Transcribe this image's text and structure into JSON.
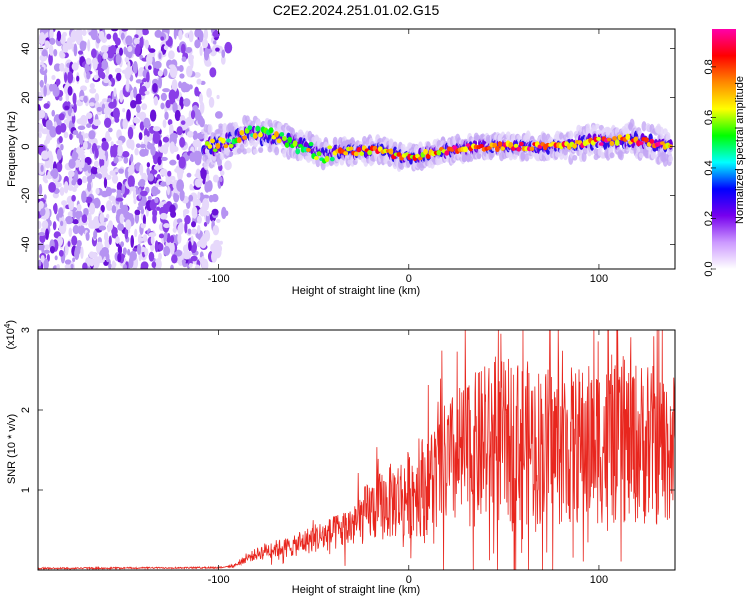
{
  "title": "C2E2.2024.251.01.02.G15",
  "chart_data": [
    {
      "type": "heatmap",
      "xlabel": "Height of straight line (km)",
      "ylabel": "Frequency (Hz)",
      "xlim": [
        -195,
        140
      ],
      "ylim": [
        -50,
        48
      ],
      "xticks": [
        -100,
        0,
        100
      ],
      "xtick_labels": [
        "-100",
        "0",
        "100"
      ],
      "yticks": [
        -40,
        -20,
        0,
        20,
        40
      ],
      "ytick_labels": [
        "-40",
        "-20",
        "0",
        "20",
        "40"
      ],
      "noise_region_x": [
        -195,
        -92
      ],
      "ridge_center_hz": [
        {
          "x": -105,
          "y": 0
        },
        {
          "x": -95,
          "y": 2
        },
        {
          "x": -85,
          "y": 5
        },
        {
          "x": -75,
          "y": 4
        },
        {
          "x": -65,
          "y": 3
        },
        {
          "x": -55,
          "y": 0
        },
        {
          "x": -45,
          "y": -3
        },
        {
          "x": -35,
          "y": -2
        },
        {
          "x": -25,
          "y": -2
        },
        {
          "x": -15,
          "y": -1
        },
        {
          "x": -5,
          "y": -4
        },
        {
          "x": 5,
          "y": -4
        },
        {
          "x": 15,
          "y": -2
        },
        {
          "x": 25,
          "y": -1
        },
        {
          "x": 35,
          "y": 0
        },
        {
          "x": 45,
          "y": 0
        },
        {
          "x": 55,
          "y": 0
        },
        {
          "x": 65,
          "y": 0
        },
        {
          "x": 75,
          "y": 0
        },
        {
          "x": 85,
          "y": 1
        },
        {
          "x": 95,
          "y": 2
        },
        {
          "x": 105,
          "y": 2
        },
        {
          "x": 115,
          "y": 3
        },
        {
          "x": 125,
          "y": 2
        },
        {
          "x": 135,
          "y": 0
        }
      ],
      "colorbar": {
        "label": "Normalized spectral amplitude",
        "range": [
          0.0,
          0.95
        ],
        "ticks": [
          0.0,
          0.2,
          0.4,
          0.6,
          0.8
        ],
        "tick_labels": [
          "0.0",
          "0.2",
          "0.4",
          "0.6",
          "0.8"
        ],
        "colors": [
          "#ffffff",
          "#cc99ff",
          "#7700ee",
          "#0000ff",
          "#00ffff",
          "#00ff00",
          "#ffff00",
          "#ff8800",
          "#ff0000",
          "#ff00aa"
        ]
      }
    },
    {
      "type": "line",
      "xlabel": "Height of straight line (km)",
      "ylabel": "SNR (10 * v/v)",
      "exponent_label": "(x10",
      "exponent_sup": "4",
      "exponent_close": ")",
      "xlim": [
        -195,
        140
      ],
      "ylim": [
        0,
        3
      ],
      "xticks": [
        -100,
        0,
        100
      ],
      "xtick_labels": [
        "-100",
        "0",
        "100"
      ],
      "yticks": [
        1,
        2,
        3
      ],
      "ytick_labels": [
        "1",
        "2",
        "3"
      ],
      "color": "#e8261e",
      "envelope": [
        {
          "x": -195,
          "y": 0.02
        },
        {
          "x": -100,
          "y": 0.03
        },
        {
          "x": -92,
          "y": 0.05
        },
        {
          "x": -85,
          "y": 0.15
        },
        {
          "x": -75,
          "y": 0.25
        },
        {
          "x": -60,
          "y": 0.3
        },
        {
          "x": -50,
          "y": 0.4
        },
        {
          "x": -40,
          "y": 0.45
        },
        {
          "x": -30,
          "y": 0.55
        },
        {
          "x": -20,
          "y": 0.75
        },
        {
          "x": -10,
          "y": 0.85
        },
        {
          "x": 0,
          "y": 0.95
        },
        {
          "x": 10,
          "y": 1.1
        },
        {
          "x": 20,
          "y": 1.3
        },
        {
          "x": 30,
          "y": 1.45
        },
        {
          "x": 40,
          "y": 1.55
        },
        {
          "x": 50,
          "y": 1.6
        },
        {
          "x": 60,
          "y": 1.6
        },
        {
          "x": 70,
          "y": 1.55
        },
        {
          "x": 80,
          "y": 1.55
        },
        {
          "x": 90,
          "y": 1.55
        },
        {
          "x": 100,
          "y": 1.6
        },
        {
          "x": 110,
          "y": 1.55
        },
        {
          "x": 120,
          "y": 1.6
        },
        {
          "x": 130,
          "y": 1.55
        },
        {
          "x": 140,
          "y": 1.55
        }
      ],
      "peak": {
        "x": 105,
        "y": 3.0
      }
    }
  ]
}
